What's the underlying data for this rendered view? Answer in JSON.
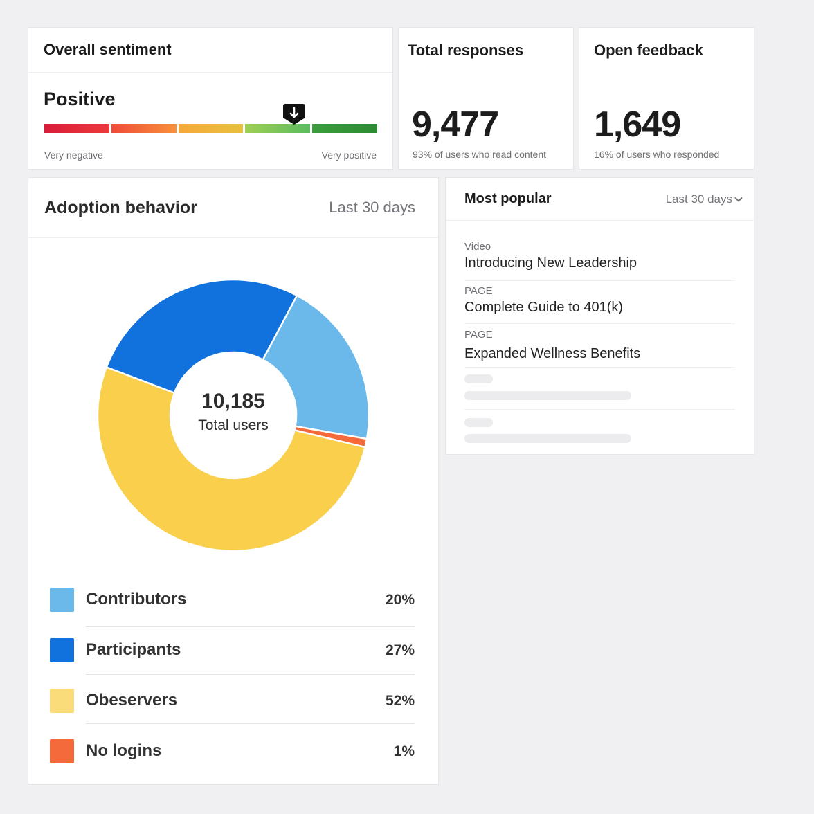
{
  "sentiment": {
    "title": "Overall sentiment",
    "value": "Positive",
    "scale_left": "Very negative",
    "scale_right": "Very positive",
    "level": 0.75,
    "segment_colors": [
      [
        "#d81c3a",
        "#ec3a3a"
      ],
      [
        "#ef4b37",
        "#f8913b"
      ],
      [
        "#f7a83a",
        "#e9c03f"
      ],
      [
        "#9fcf55",
        "#59bc5d"
      ],
      [
        "#3a9e3b",
        "#2c8b31"
      ]
    ],
    "marker_icon": "arrow-down-icon"
  },
  "responses": {
    "title": "Total responses",
    "value": "9,477",
    "subtitle": "93% of users who read content"
  },
  "feedback": {
    "title": "Open feedback",
    "value": "1,649",
    "subtitle": "16% of users who responded"
  },
  "adoption": {
    "title": "Adoption behavior",
    "period": "Last 30 days",
    "total": "10,185",
    "total_label": "Total users",
    "chart_data": {
      "type": "pie",
      "categories": [
        "Contributors",
        "Participants",
        "Obeservers",
        "No logins"
      ],
      "values": [
        20,
        27,
        52,
        1
      ],
      "labels": [
        "20%",
        "27%",
        "52%",
        "1%"
      ],
      "colors": [
        "#6bb9eb",
        "#1272dd",
        "#f9cf4b",
        "#f56a3a"
      ],
      "legend_colors": [
        "#6bb9eb",
        "#1272dd",
        "#fadd7a",
        "#f56a3a"
      ],
      "legend_position": "bottom"
    }
  },
  "popular": {
    "title": "Most popular",
    "period": "Last 30 days",
    "dropdown_icon": "chevron-down-icon",
    "items": [
      {
        "kind": "Video",
        "name": "Introducing New Leadership"
      },
      {
        "kind": "PAGE",
        "name": "Complete Guide to 401(k)"
      },
      {
        "kind": "PAGE",
        "name": "Expanded Wellness Benefits"
      }
    ]
  }
}
